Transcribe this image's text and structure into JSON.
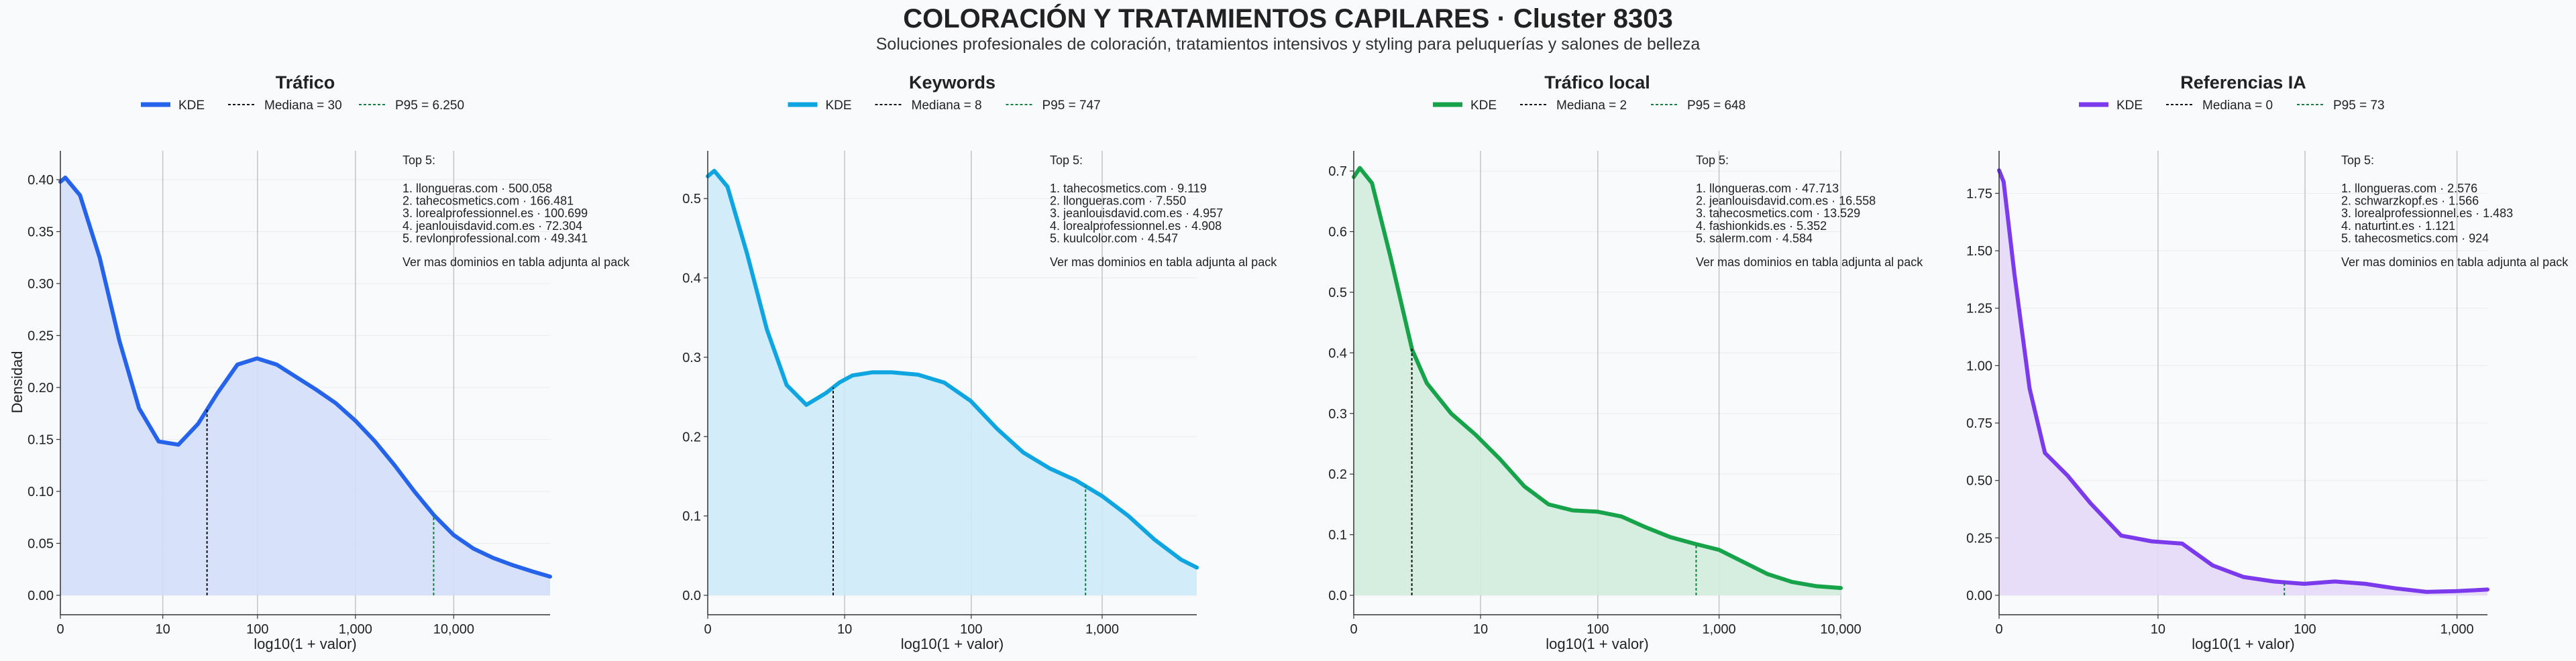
{
  "header": {
    "title": "COLORACIÓN Y TRATAMIENTOS CAPILARES · Cluster 8303",
    "subtitle": "Soluciones profesionales de coloración, tratamientos intensivos y styling para peluquerías y salones de belleza"
  },
  "common": {
    "xlabel": "log10(1 + valor)",
    "ylabel": "Densidad",
    "legend_kde": "KDE",
    "top_heading": "Top 5:",
    "top_footer": "Ver mas dominios en tabla adjunta al pack",
    "median_color": "#111111",
    "p95_color": "#15803d",
    "grid": true
  },
  "chart_data": [
    {
      "type": "line",
      "title": "Tráfico",
      "color": "#2563eb",
      "fill": "#d3def8",
      "legend": [
        "KDE",
        "Mediana = 30",
        "P95 = 6.250"
      ],
      "median": 30,
      "p95": 6250,
      "xmax_log": 4.98,
      "x_ticks": [
        {
          "v": 0,
          "label": "0"
        },
        {
          "v": 10,
          "label": "10"
        },
        {
          "v": 100,
          "label": "100"
        },
        {
          "v": 1000,
          "label": "1,000"
        },
        {
          "v": 10000,
          "label": "10,000"
        }
      ],
      "ylim": [
        0,
        0.42
      ],
      "y_ticks": [
        0,
        0.05,
        0.1,
        0.15,
        0.2,
        0.25,
        0.3,
        0.35,
        0.4
      ],
      "y_decimals": 2,
      "kde_log_x": [
        0,
        0.05,
        0.2,
        0.4,
        0.6,
        0.8,
        1.0,
        1.2,
        1.4,
        1.6,
        1.8,
        2.0,
        2.2,
        2.4,
        2.6,
        2.8,
        3.0,
        3.2,
        3.4,
        3.6,
        3.8,
        4.0,
        4.2,
        4.4,
        4.6,
        4.8,
        4.98
      ],
      "kde_y": [
        0.398,
        0.402,
        0.385,
        0.325,
        0.245,
        0.18,
        0.148,
        0.145,
        0.165,
        0.195,
        0.222,
        0.228,
        0.222,
        0.21,
        0.198,
        0.185,
        0.168,
        0.148,
        0.125,
        0.1,
        0.077,
        0.058,
        0.045,
        0.036,
        0.029,
        0.023,
        0.018
      ],
      "top5": [
        "1. llongueras.com · 500.058",
        "2. tahecosmetics.com · 166.481",
        "3. lorealprofessionnel.es · 100.699",
        "4. jeanlouisdavid.com.es · 72.304",
        "5. revlonprofessional.com · 49.341"
      ]
    },
    {
      "type": "line",
      "title": "Keywords",
      "color": "#0ea5e0",
      "fill": "#cdeaf8",
      "legend": [
        "KDE",
        "Mediana = 8",
        "P95 = 747"
      ],
      "median": 8,
      "p95": 747,
      "xmax_log": 3.72,
      "x_ticks": [
        {
          "v": 0,
          "label": "0"
        },
        {
          "v": 10,
          "label": "10"
        },
        {
          "v": 100,
          "label": "100"
        },
        {
          "v": 1000,
          "label": "1,000"
        }
      ],
      "ylim": [
        0,
        0.55
      ],
      "y_ticks": [
        0,
        0.1,
        0.2,
        0.3,
        0.4,
        0.5
      ],
      "y_decimals": 1,
      "kde_log_x": [
        0,
        0.05,
        0.15,
        0.3,
        0.45,
        0.6,
        0.75,
        0.9,
        1.0,
        1.1,
        1.25,
        1.4,
        1.6,
        1.8,
        2.0,
        2.2,
        2.4,
        2.6,
        2.8,
        3.0,
        3.2,
        3.4,
        3.6,
        3.72
      ],
      "kde_y": [
        0.528,
        0.535,
        0.515,
        0.43,
        0.335,
        0.265,
        0.24,
        0.255,
        0.268,
        0.277,
        0.281,
        0.281,
        0.278,
        0.268,
        0.245,
        0.21,
        0.18,
        0.16,
        0.145,
        0.125,
        0.1,
        0.07,
        0.045,
        0.035
      ],
      "top5": [
        "1. tahecosmetics.com · 9.119",
        "2. llongueras.com · 7.550",
        "3. jeanlouisdavid.com.es · 4.957",
        "4. lorealprofessionnel.es · 4.908",
        "5. kuulcolor.com · 4.547"
      ]
    },
    {
      "type": "line",
      "title": "Tráfico local",
      "color": "#16a34a",
      "fill": "#d2ecdb",
      "legend": [
        "KDE",
        "Mediana = 2",
        "P95 = 648"
      ],
      "median": 2,
      "p95": 648,
      "xmax_log": 4.0,
      "x_ticks": [
        {
          "v": 0,
          "label": "0"
        },
        {
          "v": 10,
          "label": "10"
        },
        {
          "v": 100,
          "label": "100"
        },
        {
          "v": 1000,
          "label": "1,000"
        },
        {
          "v": 10000,
          "label": "10,000"
        }
      ],
      "ylim": [
        0,
        0.72
      ],
      "y_ticks": [
        0,
        0.1,
        0.2,
        0.3,
        0.4,
        0.5,
        0.6,
        0.7
      ],
      "y_decimals": 1,
      "kde_log_x": [
        0,
        0.05,
        0.15,
        0.3,
        0.48,
        0.6,
        0.8,
        1.0,
        1.2,
        1.4,
        1.6,
        1.8,
        2.0,
        2.2,
        2.4,
        2.6,
        2.8,
        3.0,
        3.2,
        3.4,
        3.6,
        3.8,
        4.0
      ],
      "kde_y": [
        0.69,
        0.705,
        0.68,
        0.56,
        0.405,
        0.35,
        0.3,
        0.265,
        0.225,
        0.18,
        0.15,
        0.14,
        0.138,
        0.13,
        0.112,
        0.096,
        0.085,
        0.075,
        0.055,
        0.035,
        0.022,
        0.015,
        0.012
      ],
      "top5": [
        "1. llongueras.com · 47.713",
        "2. jeanlouisdavid.com.es · 16.558",
        "3. tahecosmetics.com · 13.529",
        "4. fashionkids.es · 5.352",
        "5. salerm.com · 4.584"
      ]
    },
    {
      "type": "line",
      "title": "Referencias IA",
      "color": "#7c3aed",
      "fill": "#e4d9f8",
      "legend": [
        "KDE",
        "Mediana = 0",
        "P95 = 73"
      ],
      "median": 0,
      "p95": 73,
      "xmax_log": 3.2,
      "x_ticks": [
        {
          "v": 0,
          "label": "0"
        },
        {
          "v": 10,
          "label": "10"
        },
        {
          "v": 100,
          "label": "100"
        },
        {
          "v": 1000,
          "label": "1,000"
        }
      ],
      "ylim": [
        0,
        1.9
      ],
      "y_ticks": [
        0,
        0.25,
        0.5,
        0.75,
        1.0,
        1.25,
        1.5,
        1.75
      ],
      "y_decimals": 2,
      "kde_log_x": [
        0,
        0.03,
        0.1,
        0.2,
        0.3,
        0.45,
        0.6,
        0.8,
        1.0,
        1.2,
        1.4,
        1.6,
        1.8,
        2.0,
        2.2,
        2.4,
        2.6,
        2.8,
        3.0,
        3.2
      ],
      "kde_y": [
        1.85,
        1.8,
        1.4,
        0.9,
        0.62,
        0.52,
        0.4,
        0.26,
        0.235,
        0.225,
        0.13,
        0.08,
        0.06,
        0.05,
        0.06,
        0.05,
        0.03,
        0.015,
        0.018,
        0.025
      ],
      "top5": [
        "1. llongueras.com · 2.576",
        "2. schwarzkopf.es · 1.566",
        "3. lorealprofessionnel.es · 1.483",
        "4. naturtint.es · 1.121",
        "5. tahecosmetics.com · 924"
      ]
    }
  ]
}
